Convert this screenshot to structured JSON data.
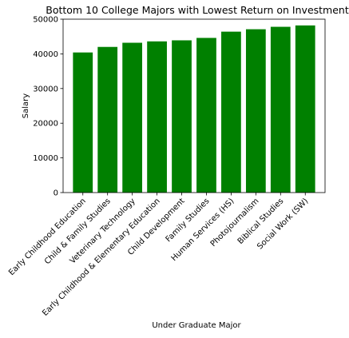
{
  "chart_data": {
    "type": "bar",
    "title": "Bottom 10 College Majors with Lowest Return on Investment",
    "xlabel": "Under Graduate Major",
    "ylabel": "Salary",
    "categories": [
      "Early Childhood Education",
      "Child & Family Studies",
      "Veterinary Technology",
      "Early Childhood & Elementary Education",
      "Child Development",
      "Family Studies",
      "Human Services (HS)",
      "Photojournalism",
      "Biblical Studies",
      "Social Work (SW)"
    ],
    "values": [
      40400,
      42000,
      43200,
      43600,
      43900,
      44600,
      46400,
      47100,
      47800,
      48200
    ],
    "ylim": [
      0,
      50000
    ],
    "yticks": [
      0,
      10000,
      20000,
      30000,
      40000,
      50000
    ],
    "grid": false,
    "bar_color": "#008000"
  }
}
